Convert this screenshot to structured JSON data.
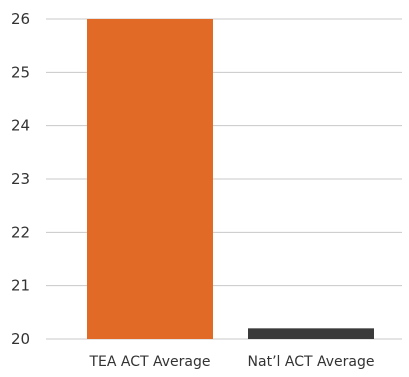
{
  "chart_data": {
    "type": "bar",
    "categories": [
      "TEA ACT Average",
      "Nat’l ACT Average"
    ],
    "values": [
      26,
      20.2
    ],
    "ylim": [
      20,
      26
    ],
    "yticks": [
      20,
      21,
      22,
      23,
      24,
      25,
      26
    ],
    "grid": true,
    "legend": "none",
    "colors": {
      "bars": [
        "#e06a26",
        "#3a3a3a"
      ],
      "grid": "#c8c8c8",
      "text": "#333333"
    }
  }
}
